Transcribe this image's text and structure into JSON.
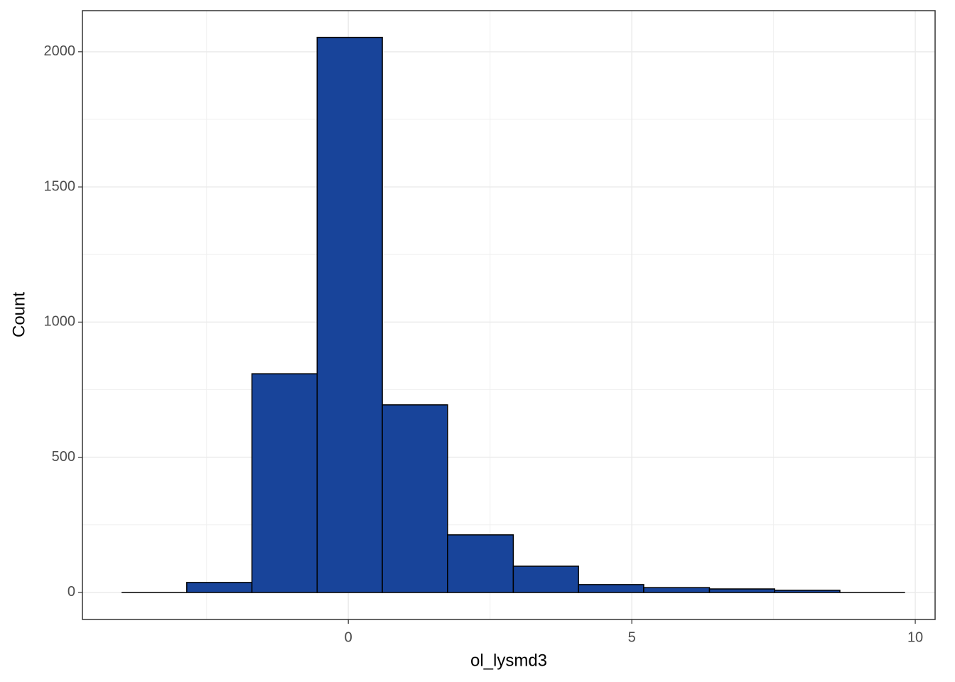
{
  "chart_data": {
    "type": "histogram",
    "x_label": "ol_lysmd3",
    "y_label": "Count",
    "bins": [
      -4.0,
      -2.85,
      -1.7,
      -0.55,
      0.6,
      1.75,
      2.91,
      4.06,
      5.21,
      6.37,
      7.52,
      8.67,
      9.82
    ],
    "counts": [
      0,
      37,
      809,
      2053,
      694,
      213,
      97,
      29,
      18,
      13,
      8,
      0
    ],
    "color": "#18449a",
    "edgecolor": "#000000",
    "xlim": [
      -4.69,
      10.35
    ],
    "xticks": [
      0,
      5,
      10
    ],
    "ylim": [
      -100,
      2152
    ],
    "yticks": [
      0,
      500,
      1000,
      1500,
      2000
    ],
    "grid": true
  }
}
